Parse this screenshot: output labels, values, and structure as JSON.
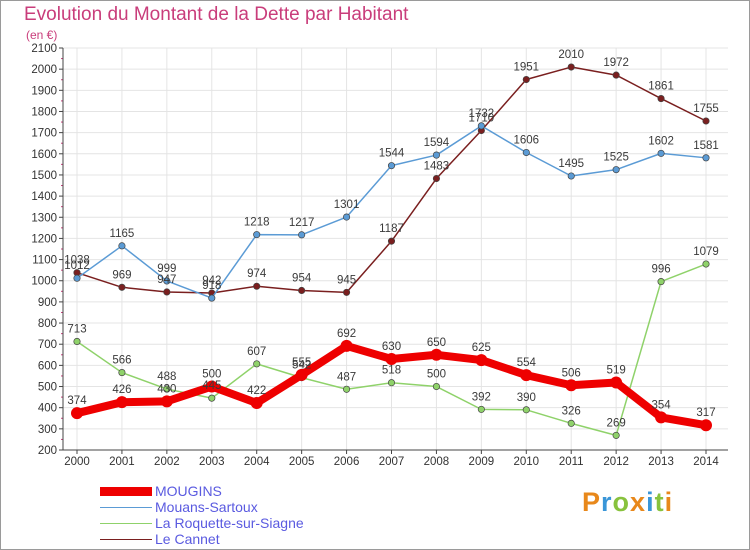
{
  "title": "Evolution du Montant de la Dette par Habitant",
  "unit": "(en €)",
  "logo": "Proxiti",
  "logo_colors": [
    "#e8881b",
    "#3a96d8",
    "#88c23d",
    "#e8881b",
    "#3a96d8",
    "#88c23d",
    "#e8881b"
  ],
  "chart_data": {
    "type": "line",
    "title": "Evolution du Montant de la Dette par Habitant",
    "subtitle": "(en €)",
    "xlabel": "",
    "ylabel": "",
    "ylim": [
      200,
      2100
    ],
    "yticks": [
      200,
      300,
      400,
      500,
      600,
      700,
      800,
      900,
      1000,
      1100,
      1200,
      1300,
      1400,
      1500,
      1600,
      1700,
      1800,
      1900,
      2000,
      2100
    ],
    "x": [
      "2000",
      "2001",
      "2002",
      "2003",
      "2004",
      "2005",
      "2006",
      "2007",
      "2008",
      "2009",
      "2010",
      "2011",
      "2012",
      "2013",
      "2014"
    ],
    "grid": true,
    "legend_position": "bottom-left",
    "series": [
      {
        "name": "Le Cannet",
        "color": "#7a1f1f",
        "values": [
          1038,
          969,
          947,
          942,
          974,
          954,
          945,
          1187,
          1483,
          1710,
          1951,
          2010,
          1972,
          1861,
          1755
        ]
      },
      {
        "name": "Mouans-Sartoux",
        "color": "#5b9bd5",
        "values": [
          1012,
          1165,
          999,
          918,
          1218,
          1217,
          1301,
          1544,
          1594,
          1732,
          1606,
          1495,
          1525,
          1602,
          1581
        ]
      },
      {
        "name": "La Roquette-sur-Siagne",
        "color": "#8fd26a",
        "values": [
          713,
          566,
          488,
          445,
          607,
          542,
          487,
          518,
          500,
          392,
          390,
          326,
          269,
          996,
          1079
        ]
      },
      {
        "name": "MOUGINS",
        "color": "#ee0000",
        "values": [
          374,
          426,
          430,
          500,
          422,
          555,
          692,
          630,
          650,
          625,
          554,
          506,
          519,
          354,
          317
        ]
      }
    ]
  },
  "legend": [
    {
      "label": "MOUGINS",
      "color": "#ee0000"
    },
    {
      "label": "Mouans-Sartoux",
      "color": "#5b9bd5"
    },
    {
      "label": "La Roquette-sur-Siagne",
      "color": "#8fd26a"
    },
    {
      "label": "Le Cannet",
      "color": "#7a1f1f"
    }
  ]
}
